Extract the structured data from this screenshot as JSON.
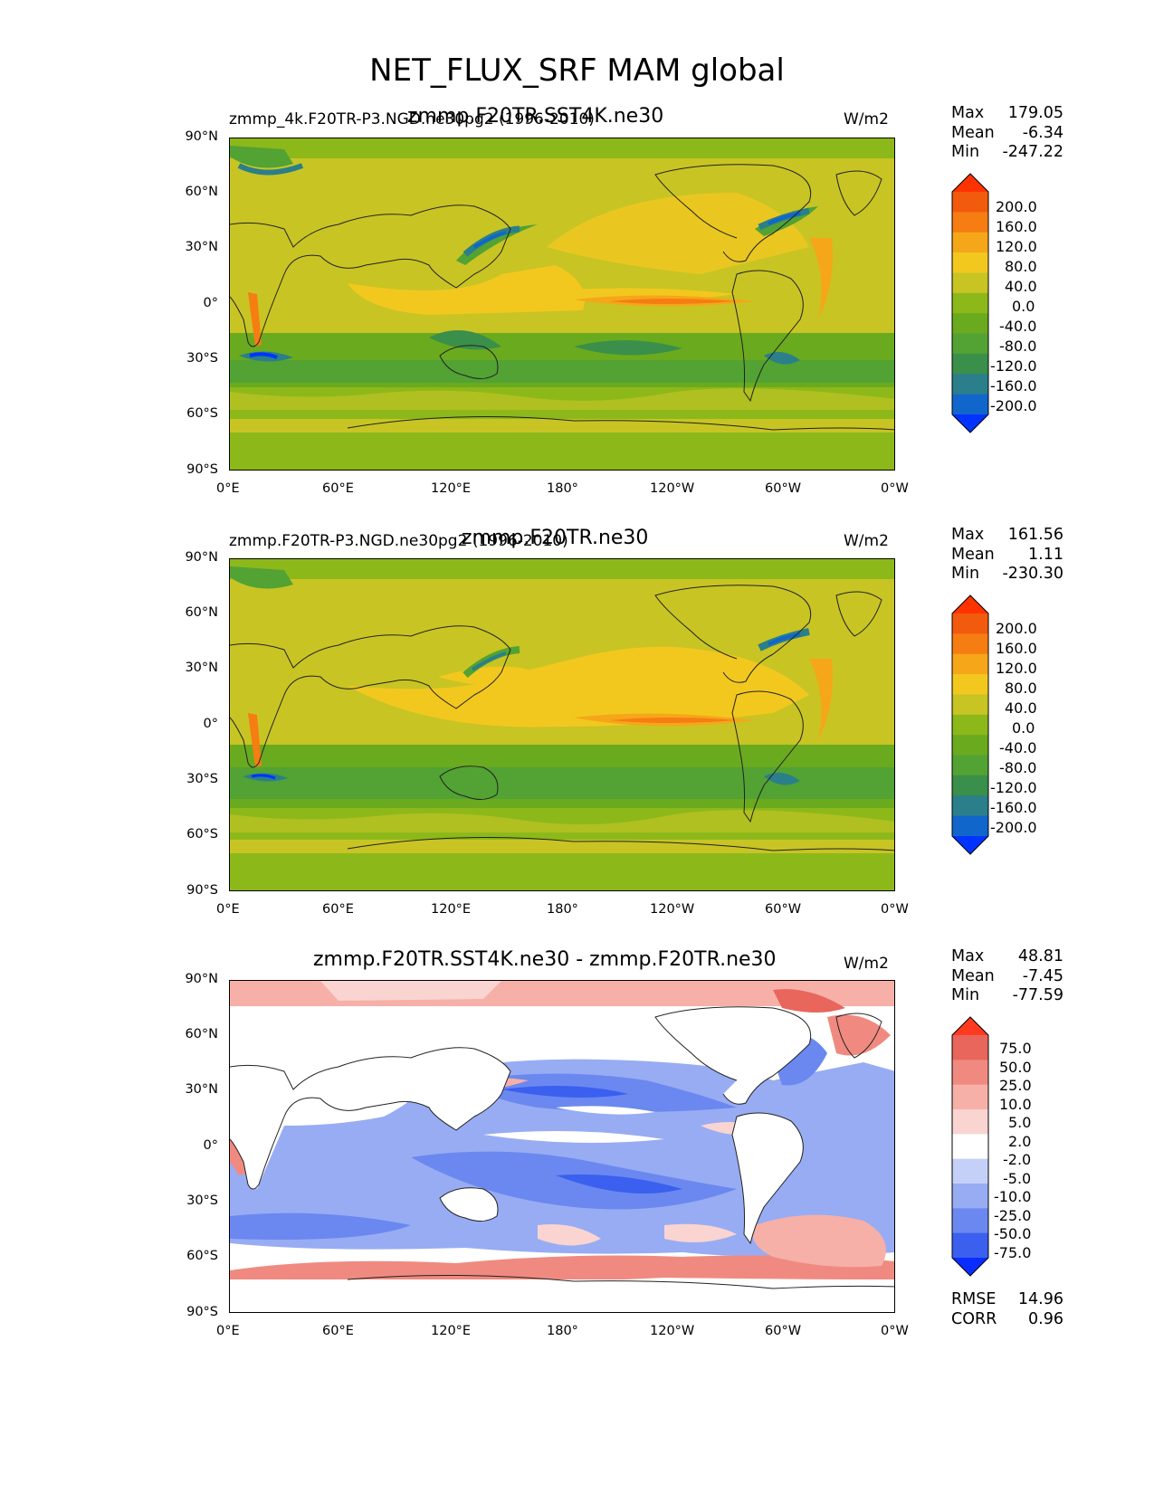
{
  "figure": {
    "title": "NET_FLUX_SRF MAM global"
  },
  "axes": {
    "lat_ticks": [
      "90°N",
      "60°N",
      "30°N",
      "0°",
      "30°S",
      "60°S",
      "90°S"
    ],
    "lon_ticks": [
      "0°E",
      "60°E",
      "120°E",
      "180°",
      "120°W",
      "60°W",
      "0°W"
    ]
  },
  "colors": {
    "flux_scale": [
      "#0033ff",
      "#1166cc",
      "#2a7f8a",
      "#3a8f4a",
      "#52a234",
      "#6aaa1e",
      "#8db81a",
      "#c8c424",
      "#f2c81f",
      "#f6a619",
      "#f67d12",
      "#f25a0e",
      "#ff3300"
    ],
    "diff_scale": [
      "#0a2dff",
      "#3b5fef",
      "#6a88ef",
      "#98acf3",
      "#c5d0f8",
      "#ffffff",
      "#f9d4d0",
      "#f6b0a8",
      "#f08a80",
      "#e8665c",
      "#ff3a20"
    ],
    "land_line": "#222222"
  },
  "panels": [
    {
      "title": "zmmp.F20TR.SST4K.ne30",
      "subtitle": "zmmp_4k.F20TR-P3.NGD.ne30pg2 (1996-2010)",
      "units": "W/m2",
      "stats": {
        "max_label": "Max",
        "max": "179.05",
        "mean_label": "Mean",
        "mean": "-6.34",
        "min_label": "Min",
        "min": "-247.22"
      },
      "colorbar_labels": [
        "200.0",
        "160.0",
        "120.0",
        "80.0",
        "40.0",
        "0.0",
        "-40.0",
        "-80.0",
        "-120.0",
        "-160.0",
        "-200.0"
      ]
    },
    {
      "title": "zmmp.F20TR.ne30",
      "subtitle": "zmmp.F20TR-P3.NGD.ne30pg2 (1996-2010)",
      "units": "W/m2",
      "stats": {
        "max_label": "Max",
        "max": "161.56",
        "mean_label": "Mean",
        "mean": "1.11",
        "min_label": "Min",
        "min": "-230.30"
      },
      "colorbar_labels": [
        "200.0",
        "160.0",
        "120.0",
        "80.0",
        "40.0",
        "0.0",
        "-40.0",
        "-80.0",
        "-120.0",
        "-160.0",
        "-200.0"
      ]
    },
    {
      "title": "zmmp.F20TR.SST4K.ne30 - zmmp.F20TR.ne30",
      "units": "W/m2",
      "stats": {
        "max_label": "Max",
        "max": "48.81",
        "mean_label": "Mean",
        "mean": "-7.45",
        "min_label": "Min",
        "min": "-77.59"
      },
      "colorbar_labels": [
        "75.0",
        "50.0",
        "25.0",
        "10.0",
        "5.0",
        "2.0",
        "-2.0",
        "-5.0",
        "-10.0",
        "-25.0",
        "-50.0",
        "-75.0"
      ],
      "rmse_label": "RMSE",
      "rmse": "14.96",
      "corr_label": "CORR",
      "corr": "0.96"
    }
  ]
}
